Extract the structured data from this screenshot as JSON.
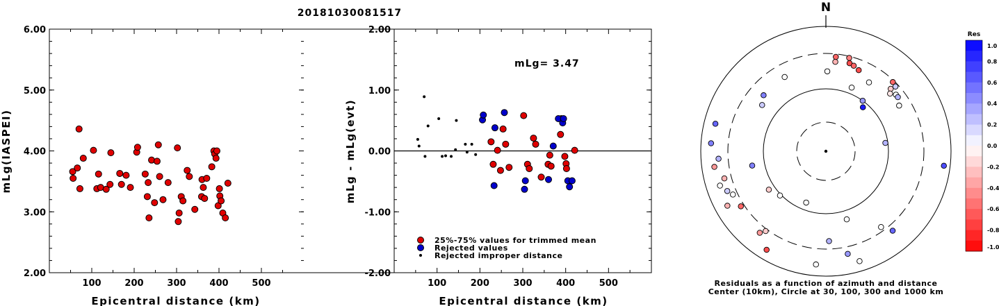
{
  "title": "20181030081517",
  "colors": {
    "trimmed": "#e00000",
    "rejected": "#0000cc",
    "residual_pos": "#0000ff",
    "residual_neg": "#ff0000"
  },
  "chart_data": [
    {
      "type": "scatter",
      "xlabel": "Epicentral distance (km)",
      "ylabel": "mLg(IASPEI)",
      "xlim": [
        0,
        600
      ],
      "ylim": [
        2.0,
        6.0
      ],
      "xticks": [
        100,
        200,
        300,
        400,
        500
      ],
      "yticks": [
        2.0,
        3.0,
        4.0,
        5.0,
        6.0
      ],
      "xtick_labels": [
        "100",
        "200",
        "300",
        "400",
        "500"
      ],
      "ytick_labels": [
        "2.00",
        "3.00",
        "4.00",
        "5.00",
        "6.00"
      ],
      "series": [
        {
          "color": "#e00000",
          "x": [
            55,
            56,
            66,
            70,
            72,
            80,
            104,
            112,
            116,
            121,
            134,
            143,
            145,
            166,
            170,
            181,
            191,
            206,
            208,
            226,
            231,
            233,
            235,
            241,
            248,
            254,
            257,
            260,
            268,
            280,
            302,
            304,
            306,
            311,
            315,
            325,
            330,
            343,
            359,
            360,
            363,
            366,
            371,
            383,
            388,
            390,
            393,
            395,
            398,
            401,
            402,
            405,
            409,
            415,
            421
          ],
          "y": [
            3.66,
            3.55,
            3.72,
            4.36,
            3.38,
            3.88,
            4.01,
            3.38,
            3.62,
            3.4,
            3.37,
            3.45,
            3.97,
            3.63,
            3.45,
            3.6,
            3.4,
            3.98,
            4.06,
            3.62,
            3.25,
            3.48,
            2.9,
            3.85,
            3.15,
            3.83,
            4.1,
            3.58,
            3.2,
            3.48,
            4.05,
            2.84,
            2.98,
            3.25,
            3.18,
            3.68,
            3.58,
            3.04,
            3.25,
            3.53,
            3.4,
            3.22,
            3.55,
            3.74,
            4.0,
            3.95,
            3.88,
            4.0,
            3.1,
            3.38,
            3.26,
            3.18,
            2.98,
            2.9,
            3.47
          ]
        }
      ]
    },
    {
      "type": "scatter",
      "xlabel": "Epicentral distance (km)",
      "ylabel": "mLg - mLg(evt)",
      "annotation": "mLg= 3.47",
      "xlim": [
        0,
        600
      ],
      "ylim": [
        -2.0,
        2.0
      ],
      "xticks": [
        100,
        200,
        300,
        400,
        500
      ],
      "yticks": [
        -2.0,
        -1.0,
        0.0,
        1.0,
        2.0
      ],
      "xtick_labels": [
        "100",
        "200",
        "300",
        "400",
        "500"
      ],
      "ytick_labels": [
        "-2.00",
        "-1.00",
        "0.00",
        "1.00",
        "2.00"
      ],
      "reference_line": 0.0,
      "legend": [
        "25%-75% values for trimmed mean",
        "Rejected values",
        "Rejected improper distance"
      ],
      "series": [
        {
          "name": "25%-75% values for trimmed mean",
          "color": "#e00000",
          "x": [
            226,
            231,
            241,
            248,
            254,
            260,
            268,
            302,
            311,
            315,
            325,
            330,
            343,
            359,
            363,
            366,
            388,
            390,
            398,
            401,
            402,
            421
          ],
          "y": [
            0.15,
            -0.22,
            0.01,
            -0.32,
            0.36,
            0.11,
            -0.27,
            0.58,
            -0.22,
            -0.29,
            0.21,
            0.11,
            -0.43,
            -0.22,
            -0.07,
            -0.25,
            0.27,
            0.53,
            -0.09,
            -0.21,
            -0.29,
            0.01
          ]
        },
        {
          "name": "Rejected values",
          "color": "#0000cc",
          "x": [
            206,
            208,
            233,
            235,
            257,
            304,
            306,
            360,
            371,
            383,
            393,
            395,
            405,
            409,
            415
          ],
          "y": [
            0.51,
            0.59,
            -0.57,
            0.38,
            0.63,
            -0.63,
            -0.49,
            -0.47,
            0.08,
            0.53,
            0.46,
            0.53,
            -0.49,
            -0.59,
            -0.49
          ]
        },
        {
          "name": "Rejected improper distance",
          "color": "#000000",
          "x": [
            55,
            58,
            70,
            72,
            79,
            104,
            112,
            120,
            133,
            143,
            145,
            166,
            170,
            181,
            190
          ],
          "y": [
            0.19,
            0.08,
            0.89,
            -0.09,
            0.41,
            0.53,
            -0.09,
            -0.08,
            -0.09,
            0.02,
            0.5,
            0.11,
            -0.02,
            0.11,
            -0.06
          ]
        }
      ]
    },
    {
      "type": "scatter",
      "subtype": "polar",
      "north_label": "N",
      "caption": [
        "Residuals as a function of azimuth and distance",
        "Center (10km), Circle at 30, 100, 300 and 1000 km"
      ],
      "rings_km": [
        30,
        100,
        300,
        1000
      ],
      "colorbar": {
        "label": "Res",
        "ticks": [
          1.0,
          0.8,
          0.6,
          0.4,
          0.2,
          0.0,
          -0.2,
          -0.4,
          -0.6,
          -0.8,
          -1.0
        ],
        "tick_labels": [
          "1.0",
          "0.8",
          "0.6",
          "0.4",
          "0.2",
          "0.0",
          "-0.2",
          "-0.4",
          "-0.6",
          "-0.8",
          "-1.0"
        ],
        "range": [
          -1.0,
          1.0
        ]
      },
      "stations": [
        {
          "az": 1,
          "r": 0.64,
          "res": 0.0
        },
        {
          "az": 6,
          "r": 0.72,
          "res": -0.3
        },
        {
          "az": 6,
          "r": 0.76,
          "res": -0.6
        },
        {
          "az": 14,
          "r": 0.77,
          "res": -0.5
        },
        {
          "az": 15,
          "r": 0.73,
          "res": -0.7
        },
        {
          "az": 18,
          "r": 0.72,
          "res": -0.6
        },
        {
          "az": 22,
          "r": 0.7,
          "res": -0.7
        },
        {
          "az": 22,
          "r": 0.55,
          "res": 0.0
        },
        {
          "az": 32,
          "r": 0.65,
          "res": 0.0
        },
        {
          "az": 36,
          "r": 0.5,
          "res": 0.4
        },
        {
          "az": 40,
          "r": 0.46,
          "res": 0.9
        },
        {
          "az": 44,
          "r": 0.77,
          "res": -0.6
        },
        {
          "az": 46,
          "r": 0.72,
          "res": -0.2
        },
        {
          "az": 47,
          "r": 0.76,
          "res": 0.2
        },
        {
          "az": 48,
          "r": 0.69,
          "res": -0.1
        },
        {
          "az": 51,
          "r": 0.72,
          "res": 0.0
        },
        {
          "az": 53,
          "r": 0.72,
          "res": 0.3
        },
        {
          "az": 58,
          "r": 0.69,
          "res": 0.0
        },
        {
          "az": 82,
          "r": 0.48,
          "res": 0.3
        },
        {
          "az": 97,
          "r": 0.95,
          "res": 0.7
        },
        {
          "az": 140,
          "r": 0.83,
          "res": 0.6
        },
        {
          "az": 144,
          "r": 0.75,
          "res": 0.0
        },
        {
          "az": 163,
          "r": 0.57,
          "res": 0.0
        },
        {
          "az": 163,
          "r": 0.92,
          "res": 0.0
        },
        {
          "az": 168,
          "r": 0.84,
          "res": 0.4
        },
        {
          "az": 178,
          "r": 0.72,
          "res": 0.3
        },
        {
          "az": 185,
          "r": 0.91,
          "res": 0.0
        },
        {
          "az": 201,
          "r": 0.44,
          "res": 0.0
        },
        {
          "az": 211,
          "r": 0.92,
          "res": -0.7
        },
        {
          "az": 217,
          "r": 0.8,
          "res": -0.2
        },
        {
          "az": 219,
          "r": 0.84,
          "res": -0.4
        },
        {
          "az": 226,
          "r": 0.51,
          "res": 0.0
        },
        {
          "az": 236,
          "r": 0.55,
          "res": -0.2
        },
        {
          "az": 237,
          "r": 0.81,
          "res": -0.6
        },
        {
          "az": 241,
          "r": 0.9,
          "res": -0.3
        },
        {
          "az": 245,
          "r": 0.82,
          "res": 0.0
        },
        {
          "az": 248,
          "r": 0.85,
          "res": 0.2
        },
        {
          "az": 252,
          "r": 0.89,
          "res": 0.0
        },
        {
          "az": 255,
          "r": 0.84,
          "res": -0.3
        },
        {
          "az": 259,
          "r": 0.6,
          "res": 0.5
        },
        {
          "az": 262,
          "r": 0.9,
          "res": -0.4
        },
        {
          "az": 266,
          "r": 0.86,
          "res": 0.3
        },
        {
          "az": 274,
          "r": 0.92,
          "res": 0.5
        },
        {
          "az": 284,
          "r": 0.91,
          "res": 0.6
        },
        {
          "az": 306,
          "r": 0.63,
          "res": 0.2
        },
        {
          "az": 312,
          "r": 0.67,
          "res": 0.5
        },
        {
          "az": 331,
          "r": 0.68,
          "res": 0.0
        }
      ]
    }
  ]
}
